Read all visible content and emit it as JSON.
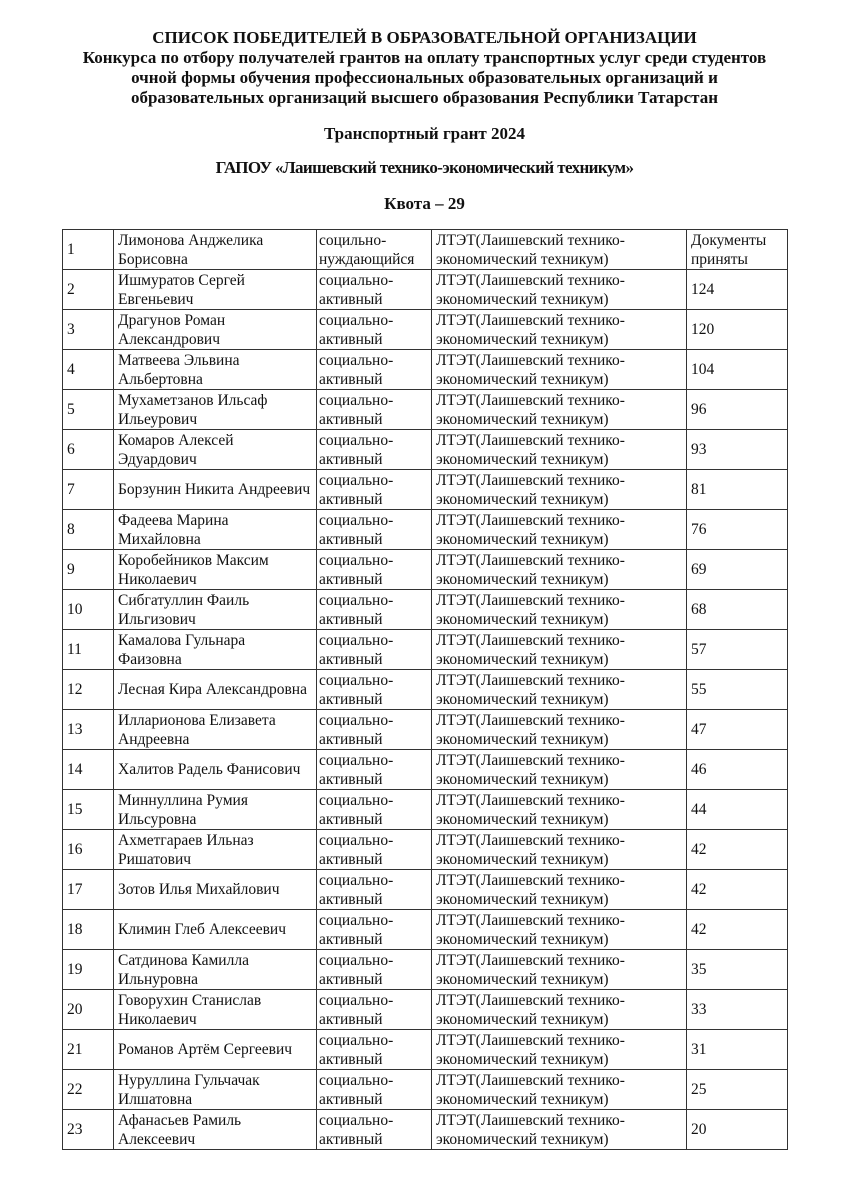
{
  "header": {
    "line1": "СПИСОК ПОБЕДИТЕЛЕЙ В ОБРАЗОВАТЕЛЬНОЙ ОРГАНИЗАЦИИ",
    "line2": "Конкурса по отбору получателей грантов на оплату транспортных услуг среди студентов",
    "line3": "очной формы обучения профессиональных образовательных организаций и",
    "line4": "образовательных организаций высшего образования Республики Татарстан",
    "grant": "Транспортный грант  2024",
    "org": "ГАПОУ «Лаишевский технико-экономический техникум»",
    "quota": "Квота – 29"
  },
  "rows": [
    {
      "n": "1",
      "name": "Лимонова Анджелика Борисовна",
      "category": "социльно-нуждающийся",
      "org": "ЛТЭТ(Лаишевский технико-экономический техникум)",
      "score": "Документы приняты"
    },
    {
      "n": "2",
      "name": "Ишмуратов Сергей Евгеньевич",
      "category": "социально-активный",
      "org": "ЛТЭТ(Лаишевский технико-экономический техникум)",
      "score": "124"
    },
    {
      "n": "3",
      "name": "Драгунов Роман Александрович",
      "category": "социально-активный",
      "org": "ЛТЭТ(Лаишевский технико-экономический техникум)",
      "score": "120"
    },
    {
      "n": "4",
      "name": "Матвеева Эльвина Альбертовна",
      "category": "социально-активный",
      "org": "ЛТЭТ(Лаишевский технико-экономический техникум)",
      "score": "104"
    },
    {
      "n": "5",
      "name": "Мухаметзанов Ильсаф Ильеурович",
      "category": "социально-активный",
      "org": "ЛТЭТ(Лаишевский технико-экономический техникум)",
      "score": "96"
    },
    {
      "n": "6",
      "name": "Комаров Алексей Эдуардович",
      "category": "социально-активный",
      "org": "ЛТЭТ(Лаишевский технико-экономический техникум)",
      "score": "93"
    },
    {
      "n": "7",
      "name": "Борзунин Никита Андреевич",
      "category": "социально-активный",
      "org": "ЛТЭТ(Лаишевский технико-экономический техникум)",
      "score": "81"
    },
    {
      "n": "8",
      "name": "Фадеева Марина Михайловна",
      "category": "социально-активный",
      "org": "ЛТЭТ(Лаишевский технико-экономический техникум)",
      "score": "76"
    },
    {
      "n": "9",
      "name": "Коробейников Максим Николаевич",
      "category": "социально-активный",
      "org": "ЛТЭТ(Лаишевский технико-экономический техникум)",
      "score": "69"
    },
    {
      "n": "10",
      "name": "Сибгатуллин Фаиль Ильгизович",
      "category": "социально-активный",
      "org": "ЛТЭТ(Лаишевский технико-экономический техникум)",
      "score": "68"
    },
    {
      "n": "11",
      "name": "Камалова Гульнара Фаизовна",
      "category": "социально-активный",
      "org": "ЛТЭТ(Лаишевский технико-экономический техникум)",
      "score": "57"
    },
    {
      "n": "12",
      "name": "Лесная Кира Александровна",
      "category": "социально-активный",
      "org": "ЛТЭТ(Лаишевский технико-экономический техникум)",
      "score": "55"
    },
    {
      "n": "13",
      "name": "Илларионова Елизавета Андреевна",
      "category": "социально-активный",
      "org": "ЛТЭТ(Лаишевский технико-экономический техникум)",
      "score": "47"
    },
    {
      "n": "14",
      "name": "Халитов Радель Фанисович",
      "category": "социально-активный",
      "org": "ЛТЭТ(Лаишевский технико-экономический техникум)",
      "score": "46"
    },
    {
      "n": "15",
      "name": "Миннуллина Румия Ильсуровна",
      "category": "социально-активный",
      "org": "ЛТЭТ(Лаишевский технико-экономический техникум)",
      "score": "44"
    },
    {
      "n": "16",
      "name": "Ахметгараев Ильназ Ришатович",
      "category": "социально-активный",
      "org": "ЛТЭТ(Лаишевский технико-экономический техникум)",
      "score": "42"
    },
    {
      "n": "17",
      "name": "Зотов Илья Михайлович",
      "category": "социально-активный",
      "org": "ЛТЭТ(Лаишевский технико-экономический техникум)",
      "score": "42"
    },
    {
      "n": "18",
      "name": "Климин Глеб Алексеевич",
      "category": "социально-активный",
      "org": "ЛТЭТ(Лаишевский технико-экономический техникум)",
      "score": "42"
    },
    {
      "n": "19",
      "name": "Сатдинова Камилла Ильнуровна",
      "category": "социально-активный",
      "org": "ЛТЭТ(Лаишевский технико-экономический техникум)",
      "score": "35"
    },
    {
      "n": "20",
      "name": "Говорухин Станислав Николаевич",
      "category": "социально-активный",
      "org": "ЛТЭТ(Лаишевский технико-экономический техникум)",
      "score": "33"
    },
    {
      "n": "21",
      "name": "Романов Артём Сергеевич",
      "category": "социально-активный",
      "org": "ЛТЭТ(Лаишевский технико-экономический техникум)",
      "score": "31"
    },
    {
      "n": "22",
      "name": "Нуруллина Гульчачак Илшатовна",
      "category": "социально-активный",
      "org": "ЛТЭТ(Лаишевский технико-экономический техникум)",
      "score": "25"
    },
    {
      "n": "23",
      "name": "Афанасьев Рамиль Алексеевич",
      "category": "социально-активный",
      "org": "ЛТЭТ(Лаишевский технико-экономический техникум)",
      "score": "20"
    }
  ]
}
